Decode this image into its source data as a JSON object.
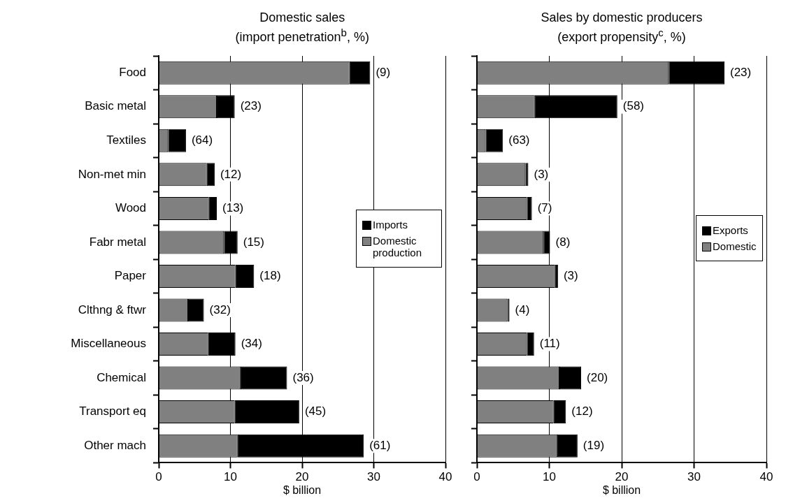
{
  "chart_data": [
    {
      "type": "bar",
      "orientation": "horizontal",
      "stacked": true,
      "title": "Domestic sales\n(import penetration$^{b}$, %)",
      "xlabel": "$ billion",
      "categories": [
        "Food",
        "Basic metal",
        "Textiles",
        "Non-met min",
        "Wood",
        "Fabr metal",
        "Paper",
        "Clthng & ftwr",
        "Miscellaneous",
        "Chemical",
        "Transport eq",
        "Other mach"
      ],
      "series": [
        {
          "name": "Domestic production",
          "color": "#808080",
          "values": [
            26.6,
            8.1,
            1.3,
            6.7,
            7.0,
            9.1,
            10.7,
            4.1,
            6.9,
            11.4,
            10.6,
            11.0
          ]
        },
        {
          "name": "Imports",
          "color": "#000000",
          "values": [
            2.9,
            2.5,
            2.5,
            1.1,
            1.1,
            1.9,
            2.6,
            2.2,
            3.8,
            6.5,
            9.0,
            17.6
          ]
        }
      ],
      "xlim": [
        0,
        40
      ],
      "xticks": [
        0,
        10,
        20,
        30,
        40
      ],
      "grid": "x",
      "legend": "right",
      "annotations": [
        {
          "text": "(9)",
          "x": 29.5,
          "y": "Food"
        },
        {
          "text": "(23)",
          "x": 10.6,
          "y": "Basic metal"
        },
        {
          "text": "(64)",
          "x": 3.8,
          "y": "Textiles"
        },
        {
          "text": "(12)",
          "x": 7.8,
          "y": "Non-met min"
        },
        {
          "text": "(13)",
          "x": 8.1,
          "y": "Wood"
        },
        {
          "text": "(15)",
          "x": 11.0,
          "y": "Fabr metal"
        },
        {
          "text": "(18)",
          "x": 13.3,
          "y": "Paper"
        },
        {
          "text": "(32)",
          "x": 6.3,
          "y": "Clthng & ftwr"
        },
        {
          "text": "(34)",
          "x": 10.7,
          "y": "Miscellaneous"
        },
        {
          "text": "(36)",
          "x": 17.9,
          "y": "Chemical"
        },
        {
          "text": "(45)",
          "x": 19.6,
          "y": "Transport eq"
        },
        {
          "text": "(61)",
          "x": 28.6,
          "y": "Other mach"
        }
      ]
    },
    {
      "type": "bar",
      "orientation": "horizontal",
      "stacked": true,
      "title": "Sales by domestic producers\n(export propensity$^{c}$, %)",
      "xlabel": "$ billion",
      "categories": [
        "Food",
        "Basic metal",
        "Textiles",
        "Non-met min",
        "Wood",
        "Fabr metal",
        "Paper",
        "Clthng & ftwr",
        "Miscellaneous",
        "Chemical",
        "Transport eq",
        "Other mach"
      ],
      "series": [
        {
          "name": "Domestic",
          "color": "#808080",
          "values": [
            26.5,
            8.0,
            1.2,
            6.7,
            6.9,
            9.2,
            10.8,
            4.2,
            6.9,
            11.4,
            10.6,
            11.1
          ]
        },
        {
          "name": "Exports",
          "color": "#000000",
          "values": [
            7.7,
            11.4,
            2.4,
            0.4,
            0.7,
            0.9,
            0.4,
            0.3,
            1.0,
            3.0,
            1.7,
            2.8
          ]
        }
      ],
      "xlim": [
        0,
        40
      ],
      "xticks": [
        0,
        10,
        20,
        30,
        40
      ],
      "grid": "x",
      "legend": "right",
      "tick_labels": "x",
      "annotations": [
        {
          "text": "(23)",
          "x": 34.2,
          "y": "Food"
        },
        {
          "text": "(58)",
          "x": 19.4,
          "y": "Basic metal"
        },
        {
          "text": "(63)",
          "x": 3.6,
          "y": "Textiles"
        },
        {
          "text": "(3)",
          "x": 7.1,
          "y": "Non-met min"
        },
        {
          "text": "(7)",
          "x": 7.6,
          "y": "Wood"
        },
        {
          "text": "(8)",
          "x": 10.1,
          "y": "Fabr metal"
        },
        {
          "text": "(3)",
          "x": 11.2,
          "y": "Paper"
        },
        {
          "text": "(4)",
          "x": 4.5,
          "y": "Clthng & ftwr"
        },
        {
          "text": "(11)",
          "x": 7.9,
          "y": "Miscellaneous"
        },
        {
          "text": "(20)",
          "x": 14.4,
          "y": "Chemical"
        },
        {
          "text": "(12)",
          "x": 12.3,
          "y": "Transport eq"
        },
        {
          "text": "(19)",
          "x": 13.9,
          "y": "Other mach"
        }
      ]
    }
  ]
}
